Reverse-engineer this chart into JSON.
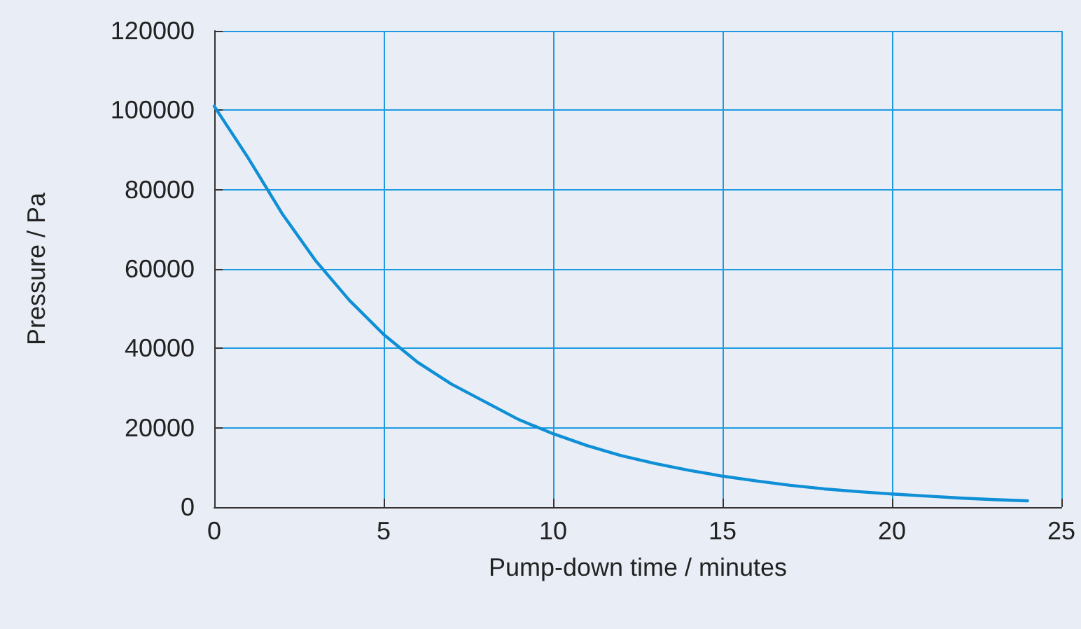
{
  "chart_data": {
    "type": "line",
    "xlabel": "Pump-down time / minutes",
    "ylabel": "Pressure / Pa",
    "x": [
      0,
      1,
      2,
      3,
      4,
      5,
      6,
      7,
      8,
      9,
      10,
      11,
      12,
      13,
      14,
      15,
      16,
      17,
      18,
      19,
      20,
      21,
      22,
      23,
      24
    ],
    "series": [
      {
        "color": "#0f8fd6",
        "values": [
          101000,
          88000,
          74000,
          62000,
          52000,
          43500,
          36500,
          31000,
          26500,
          22000,
          18500,
          15500,
          13000,
          11000,
          9300,
          7800,
          6600,
          5500,
          4600,
          3900,
          3300,
          2800,
          2300,
          1900,
          1600
        ]
      }
    ],
    "xlim": [
      0,
      25
    ],
    "xticks": [
      0,
      5,
      10,
      15,
      20,
      25
    ],
    "ylim": [
      0,
      120000
    ],
    "yticks": [
      0,
      20000,
      40000,
      60000,
      80000,
      100000,
      120000
    ],
    "grid": true,
    "marker": "none",
    "line_style": "solid"
  }
}
